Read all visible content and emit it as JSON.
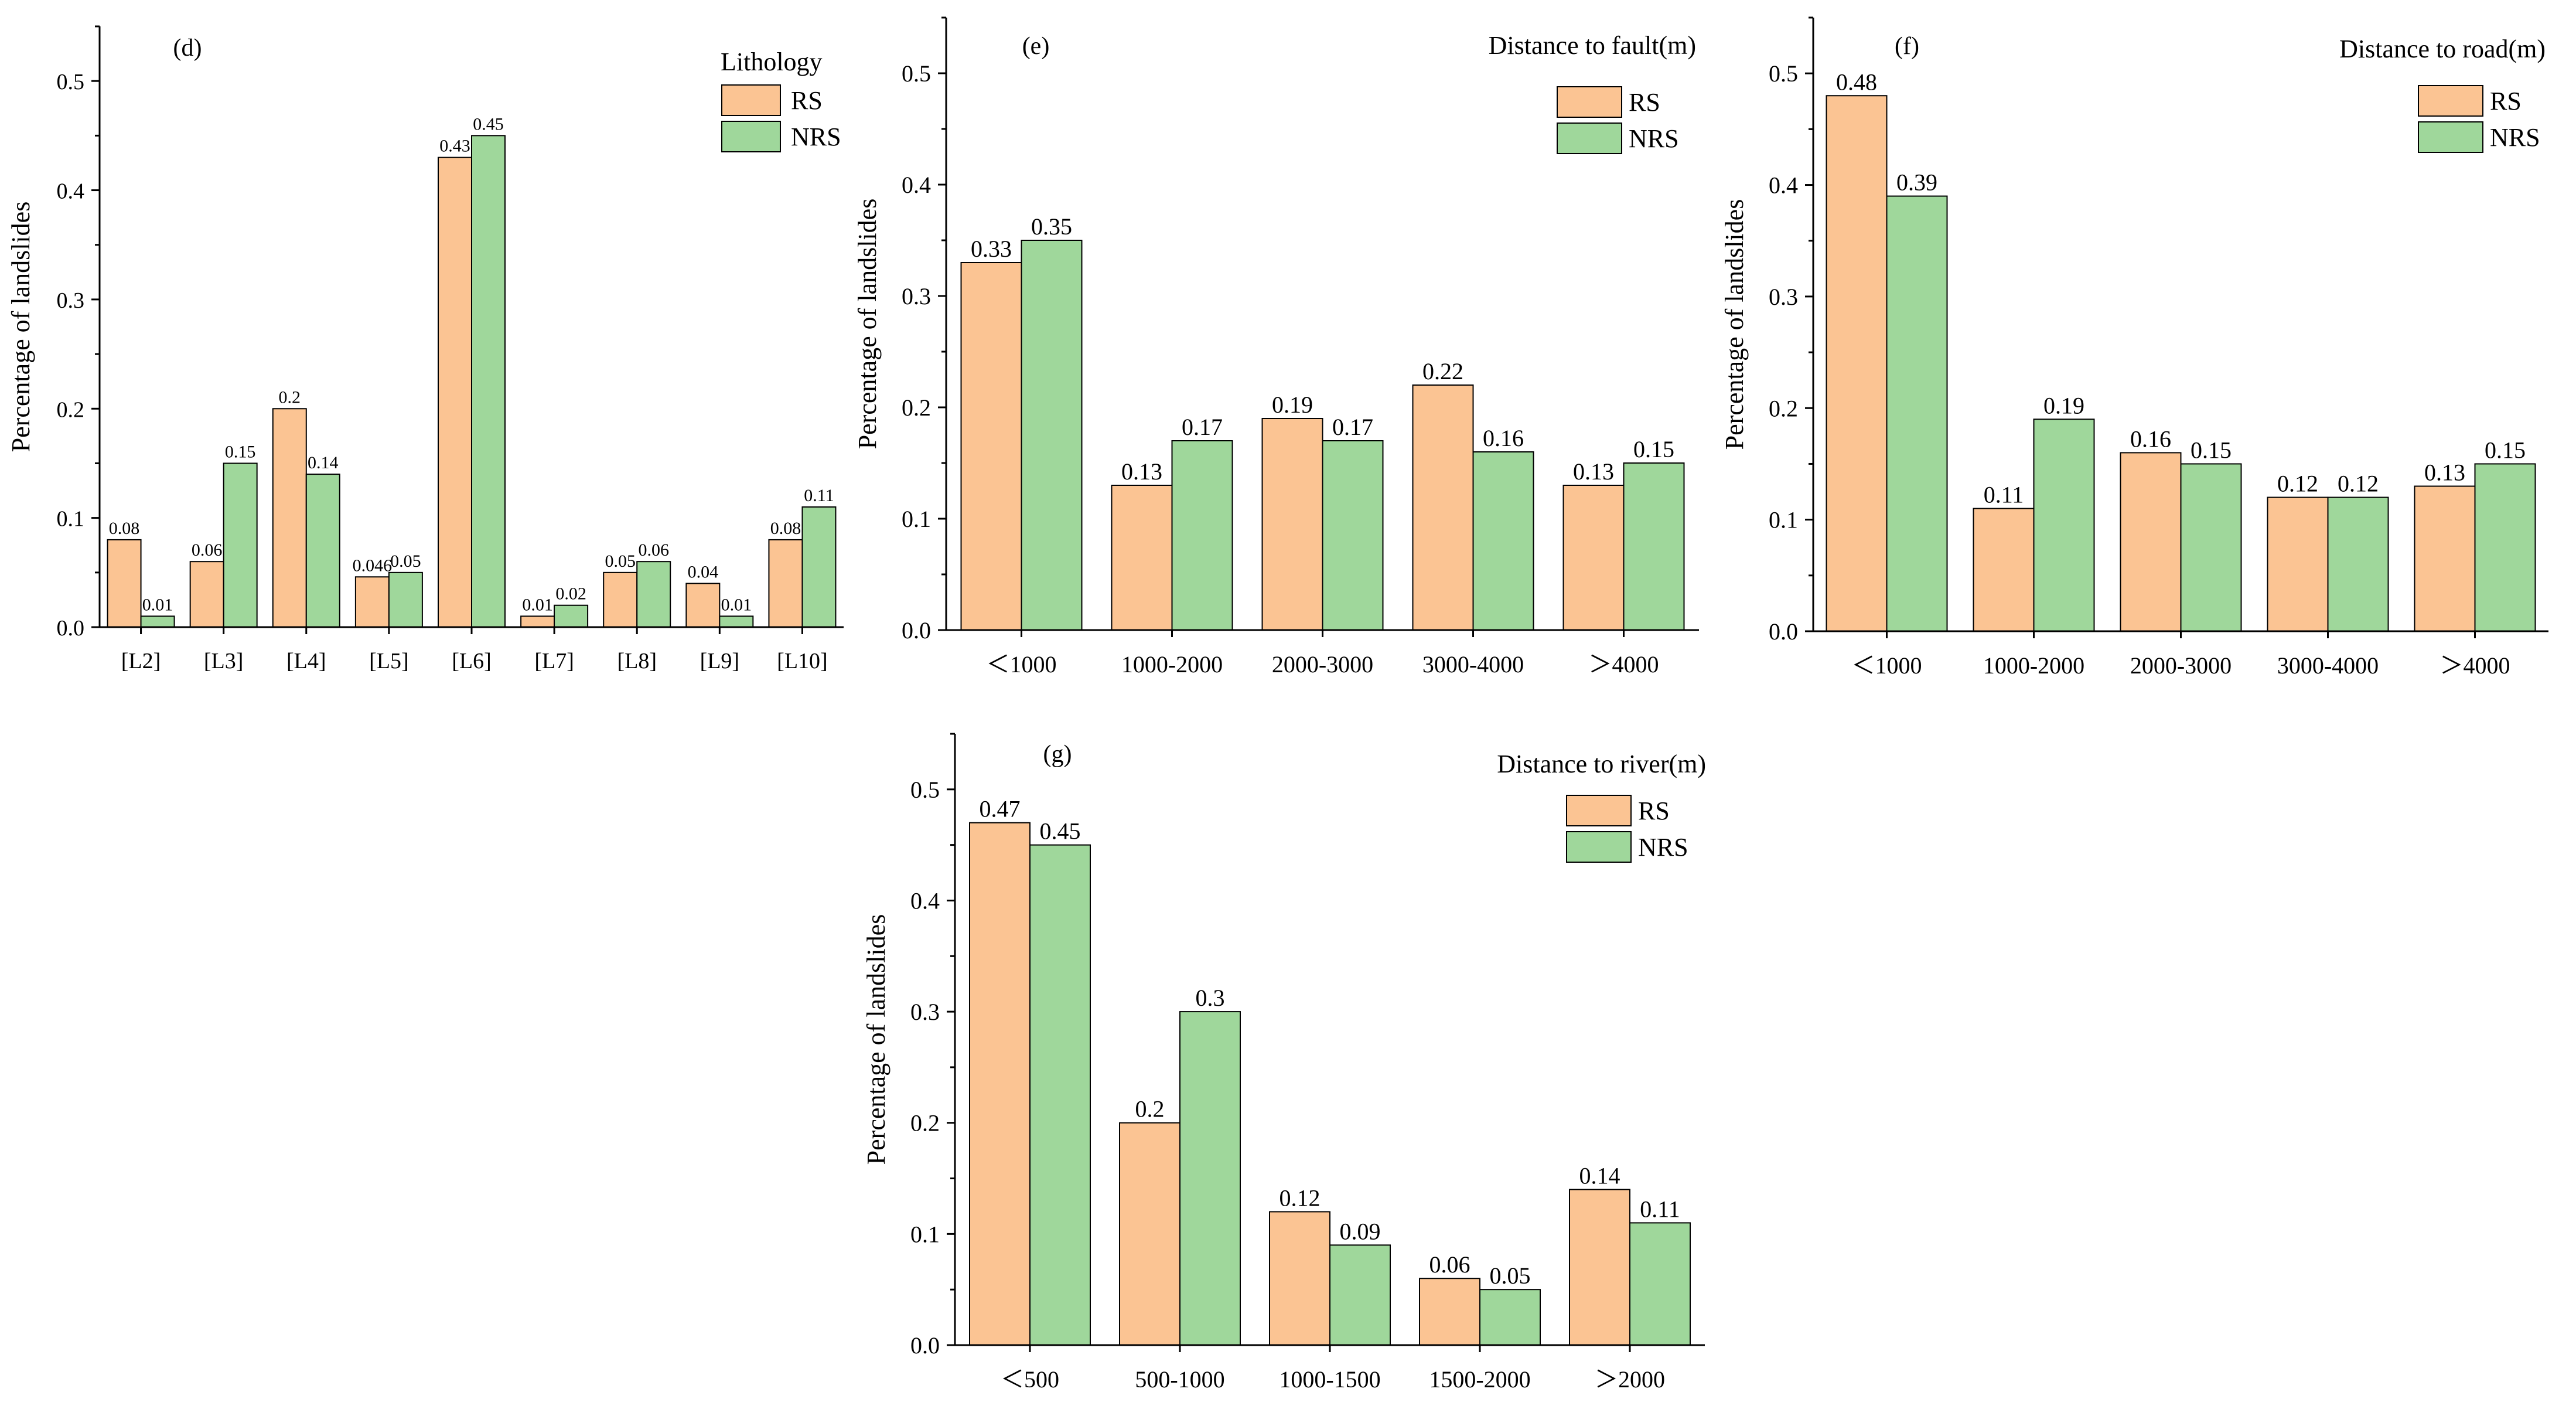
{
  "colors": {
    "RS": "#fbc493",
    "NRS": "#9fd79b",
    "edge": "#000000"
  },
  "chart_data": [
    {
      "id": "d",
      "tag": "(d)",
      "type": "bar",
      "legend_title": "Lithology",
      "ylabel": "Percentage of landslides",
      "ylim": [
        0,
        0.55
      ],
      "yticks": [
        "0.0",
        "0.1",
        "0.2",
        "0.3",
        "0.4",
        "0.5"
      ],
      "categories": [
        "[L2]",
        "[L3]",
        "[L4]",
        "[L5]",
        "[L6]",
        "[L7]",
        "[L8]",
        "[L9]",
        "[L10]"
      ],
      "series": [
        {
          "name": "RS",
          "values": [
            0.08,
            0.06,
            0.2,
            0.046,
            0.43,
            0.01,
            0.05,
            0.04,
            0.08
          ],
          "labels": [
            "0.08",
            "0.06",
            "0.2",
            "0.046",
            "0.43",
            "0.01",
            "0.05",
            "0.04",
            "0.08"
          ]
        },
        {
          "name": "NRS",
          "values": [
            0.01,
            0.15,
            0.14,
            0.05,
            0.45,
            0.02,
            0.06,
            0.01,
            0.11
          ],
          "labels": [
            "0.01",
            "0.15",
            "0.14",
            "0.05",
            "0.45",
            "0.02",
            "0.06",
            "0.01",
            "0.11"
          ]
        }
      ]
    },
    {
      "id": "e",
      "tag": "(e)",
      "type": "bar",
      "legend_title": "Distance to fault(m)",
      "ylabel": "Percentage of landslides",
      "ylim": [
        0,
        0.55
      ],
      "yticks": [
        "0.0",
        "0.1",
        "0.2",
        "0.3",
        "0.4",
        "0.5"
      ],
      "categories": [
        "＜1000",
        "1000-2000",
        "2000-3000",
        "3000-4000",
        "＞4000"
      ],
      "series": [
        {
          "name": "RS",
          "values": [
            0.33,
            0.13,
            0.19,
            0.22,
            0.13
          ],
          "labels": [
            "0.33",
            "0.13",
            "0.19",
            "0.22",
            "0.13"
          ]
        },
        {
          "name": "NRS",
          "values": [
            0.35,
            0.17,
            0.17,
            0.16,
            0.15
          ],
          "labels": [
            "0.35",
            "0.17",
            "0.17",
            "0.16",
            "0.15"
          ]
        }
      ]
    },
    {
      "id": "f",
      "tag": "(f)",
      "type": "bar",
      "legend_title": "Distance to road(m)",
      "ylabel": "Percentage of landslides",
      "ylim": [
        0,
        0.55
      ],
      "yticks": [
        "0.0",
        "0.1",
        "0.2",
        "0.3",
        "0.4",
        "0.5"
      ],
      "categories": [
        "＜1000",
        "1000-2000",
        "2000-3000",
        "3000-4000",
        "＞4000"
      ],
      "series": [
        {
          "name": "RS",
          "values": [
            0.48,
            0.11,
            0.16,
            0.12,
            0.13
          ],
          "labels": [
            "0.48",
            "0.11",
            "0.16",
            "0.12",
            "0.13"
          ]
        },
        {
          "name": "NRS",
          "values": [
            0.39,
            0.19,
            0.15,
            0.12,
            0.15
          ],
          "labels": [
            "0.39",
            "0.19",
            "0.15",
            "0.12",
            "0.15"
          ]
        }
      ]
    },
    {
      "id": "g",
      "tag": "(g)",
      "type": "bar",
      "legend_title": "Distance to river(m)",
      "ylabel": "Percentage of landslides",
      "ylim": [
        0,
        0.55
      ],
      "yticks": [
        "0.0",
        "0.1",
        "0.2",
        "0.3",
        "0.4",
        "0.5"
      ],
      "categories": [
        "＜500",
        "500-1000",
        "1000-1500",
        "1500-2000",
        "＞2000"
      ],
      "series": [
        {
          "name": "RS",
          "values": [
            0.47,
            0.2,
            0.12,
            0.06,
            0.14
          ],
          "labels": [
            "0.47",
            "0.2",
            "0.12",
            "0.06",
            "0.14"
          ]
        },
        {
          "name": "NRS",
          "values": [
            0.45,
            0.3,
            0.09,
            0.05,
            0.11
          ],
          "labels": [
            "0.45",
            "0.3",
            "0.09",
            "0.05",
            "0.11"
          ]
        }
      ]
    }
  ]
}
